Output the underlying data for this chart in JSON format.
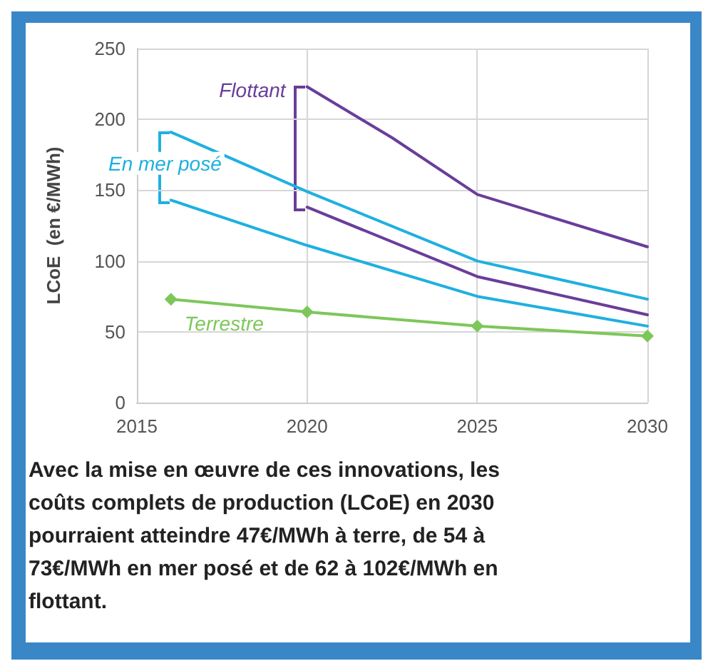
{
  "chart_data": {
    "type": "line",
    "ylabel": "LCoE  (en €/MWh)",
    "xlim": [
      2015,
      2030
    ],
    "xticks": [
      2015,
      2020,
      2025,
      2030
    ],
    "ylim": [
      0,
      250
    ],
    "yticks": [
      0,
      50,
      100,
      150,
      200,
      250
    ],
    "grid": true,
    "line_style": "solid",
    "series": [
      {
        "name": "Flottant",
        "color": "#6a3d9a",
        "x": [
          2020,
          2022.5,
          2025,
          2030
        ],
        "values": [
          223,
          187,
          147,
          110
        ],
        "marker": "none"
      },
      {
        "color": "#6a3d9a",
        "x": [
          2020,
          2025,
          2030
        ],
        "values": [
          138,
          89,
          62
        ],
        "marker": "none"
      },
      {
        "name": "En mer posé",
        "color": "#1fb0e0",
        "x": [
          2016,
          2020,
          2025,
          2030
        ],
        "values": [
          191,
          149,
          100,
          73
        ],
        "marker": "none"
      },
      {
        "color": "#1fb0e0",
        "x": [
          2016,
          2020,
          2025,
          2030
        ],
        "values": [
          143,
          111,
          75,
          54
        ],
        "marker": "none"
      },
      {
        "name": "Terrestre",
        "color": "#7dc75a",
        "x": [
          2016,
          2020,
          2025,
          2030
        ],
        "values": [
          73,
          64,
          54,
          47
        ],
        "marker": "diamond"
      }
    ],
    "annotations": [
      "Avec la mise en œuvre de ces innovations, les coûts complets de production (LCoE) en 2030 pourraient atteindre 47€/MWh à terre, de 54 à 73€/MWh en mer posé et de 62 à 102€/MWh en flottant."
    ]
  }
}
